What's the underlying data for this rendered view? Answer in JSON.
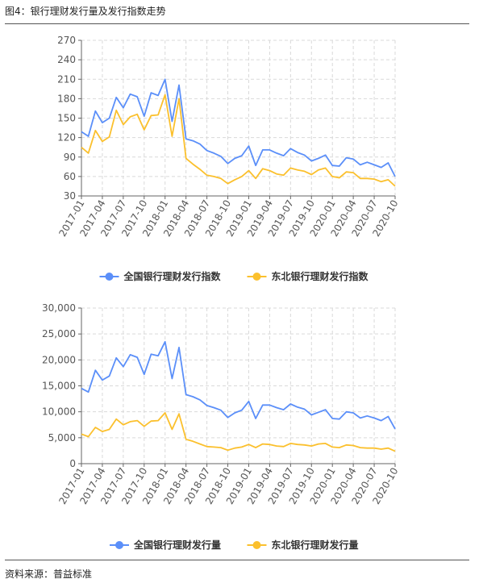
{
  "figure": {
    "title": "图4：银行理财发行量及发行指数走势",
    "source": "资料来源：普益标准"
  },
  "colors": {
    "national": "#5b8ff9",
    "northeast": "#fbc02d",
    "grid": "#d9d9d9",
    "axis": "#666666"
  },
  "legend_icon": "circle-with-line",
  "chart_data": [
    {
      "type": "line",
      "x": [
        "2017-01",
        "2017-02",
        "2017-03",
        "2017-04",
        "2017-05",
        "2017-06",
        "2017-07",
        "2017-08",
        "2017-09",
        "2017-10",
        "2017-11",
        "2017-12",
        "2018-01",
        "2018-02",
        "2018-03",
        "2018-04",
        "2018-05",
        "2018-06",
        "2018-07",
        "2018-08",
        "2018-09",
        "2018-10",
        "2018-11",
        "2018-12",
        "2019-01",
        "2019-02",
        "2019-03",
        "2019-04",
        "2019-05",
        "2019-06",
        "2019-07",
        "2019-08",
        "2019-09",
        "2019-10",
        "2019-11",
        "2019-12",
        "2020-01",
        "2020-02",
        "2020-03",
        "2020-04",
        "2020-05",
        "2020-06",
        "2020-07",
        "2020-08",
        "2020-09",
        "2020-10"
      ],
      "x_tick_labels": [
        "2017-01",
        "2017-04",
        "2017-07",
        "2017-10",
        "2018-01",
        "2018-04",
        "2018-07",
        "2018-10",
        "2019-01",
        "2019-04",
        "2019-07",
        "2019-10",
        "2020-01",
        "2020-04",
        "2020-07",
        "2020-10"
      ],
      "y_ticks": [
        "30",
        "60",
        "90",
        "120",
        "150",
        "180",
        "210",
        "240",
        "270"
      ],
      "ylim": [
        30,
        270
      ],
      "grid": true,
      "legend_position": "bottom",
      "series": [
        {
          "name": "全国银行理财发行指数",
          "color": "#5b8ff9",
          "values": [
            129,
            122,
            161,
            143,
            150,
            182,
            166,
            187,
            183,
            153,
            189,
            185,
            210,
            145,
            201,
            118,
            115,
            110,
            100,
            96,
            91,
            80,
            88,
            92,
            107,
            77,
            101,
            101,
            96,
            92,
            103,
            97,
            93,
            84,
            88,
            93,
            77,
            76,
            89,
            87,
            78,
            82,
            78,
            74,
            81,
            60
          ]
        },
        {
          "name": "东北银行理财发行指数",
          "color": "#fbc02d",
          "values": [
            105,
            96,
            131,
            114,
            121,
            162,
            140,
            152,
            156,
            132,
            154,
            155,
            186,
            122,
            180,
            88,
            79,
            71,
            62,
            60,
            57,
            49,
            55,
            60,
            69,
            57,
            72,
            69,
            64,
            62,
            73,
            70,
            68,
            63,
            70,
            73,
            60,
            58,
            67,
            66,
            57,
            57,
            56,
            52,
            55,
            45
          ]
        }
      ]
    },
    {
      "type": "line",
      "x": [
        "2017-01",
        "2017-02",
        "2017-03",
        "2017-04",
        "2017-05",
        "2017-06",
        "2017-07",
        "2017-08",
        "2017-09",
        "2017-10",
        "2017-11",
        "2017-12",
        "2018-01",
        "2018-02",
        "2018-03",
        "2018-04",
        "2018-05",
        "2018-06",
        "2018-07",
        "2018-08",
        "2018-09",
        "2018-10",
        "2018-11",
        "2018-12",
        "2019-01",
        "2019-02",
        "2019-03",
        "2019-04",
        "2019-05",
        "2019-06",
        "2019-07",
        "2019-08",
        "2019-09",
        "2019-10",
        "2019-11",
        "2019-12",
        "2020-01",
        "2020-02",
        "2020-03",
        "2020-04",
        "2020-05",
        "2020-06",
        "2020-07",
        "2020-08",
        "2020-09",
        "2020-10"
      ],
      "x_tick_labels": [
        "2017-01",
        "2017-04",
        "2017-07",
        "2017-10",
        "2018-01",
        "2018-04",
        "2018-07",
        "2018-10",
        "2019-01",
        "2019-04",
        "2019-07",
        "2019-10",
        "2020-01",
        "2020-04",
        "2020-07",
        "2020-10"
      ],
      "y_ticks": [
        "0",
        "5,000",
        "10,000",
        "15,000",
        "20,000",
        "25,000",
        "30,000"
      ],
      "ylim": [
        0,
        30000
      ],
      "grid": true,
      "legend_position": "bottom",
      "series": [
        {
          "name": "全国银行理财发行量",
          "color": "#5b8ff9",
          "values": [
            14500,
            13800,
            18000,
            16100,
            16900,
            20400,
            18700,
            21000,
            20500,
            17200,
            21100,
            20800,
            23500,
            16400,
            22400,
            13300,
            12900,
            12300,
            11200,
            10800,
            10300,
            8900,
            9800,
            10300,
            12000,
            8700,
            11300,
            11300,
            10800,
            10400,
            11500,
            10900,
            10500,
            9400,
            9900,
            10400,
            8700,
            8600,
            10000,
            9800,
            8800,
            9200,
            8800,
            8300,
            9100,
            6700
          ]
        },
        {
          "name": "东北银行理财发行量",
          "color": "#fbc02d",
          "values": [
            5700,
            5200,
            7000,
            6200,
            6600,
            8600,
            7500,
            8100,
            8300,
            7200,
            8200,
            8300,
            9800,
            6600,
            9600,
            4700,
            4300,
            3800,
            3300,
            3200,
            3100,
            2600,
            3000,
            3200,
            3700,
            3100,
            3800,
            3700,
            3400,
            3300,
            3900,
            3700,
            3600,
            3400,
            3800,
            3900,
            3200,
            3100,
            3600,
            3500,
            3100,
            3000,
            3000,
            2800,
            3000,
            2400
          ]
        }
      ]
    }
  ]
}
